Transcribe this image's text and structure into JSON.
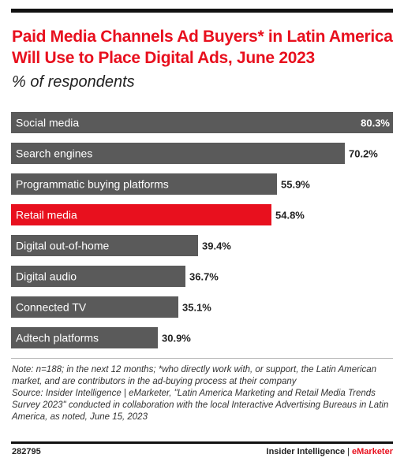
{
  "header": {
    "title": "Paid Media Channels Ad Buyers* in Latin America Will Use to Place Digital Ads, June 2023",
    "subtitle": "% of respondents"
  },
  "colors": {
    "accent": "#e8101e",
    "bar": "#5a5a5a",
    "highlight_bar": "#e8101e"
  },
  "chart_data": {
    "type": "bar",
    "orientation": "horizontal",
    "categories": [
      "Social media",
      "Search engines",
      "Programmatic buying platforms",
      "Retail media",
      "Digital out-of-home",
      "Digital audio",
      "Connected TV",
      "Adtech platforms"
    ],
    "values": [
      80.3,
      70.2,
      55.9,
      54.8,
      39.4,
      36.7,
      35.1,
      30.9
    ],
    "labels": [
      "80.3%",
      "70.2%",
      "55.9%",
      "54.8%",
      "39.4%",
      "36.7%",
      "35.1%",
      "30.9%"
    ],
    "highlight": "Retail media",
    "xlim": [
      0,
      80.3
    ],
    "grid": false,
    "legend": "none"
  },
  "notes": {
    "note": "Note: n=188; in the next 12 months; *who directly work with, or support, the Latin American market, and are contributors in the ad-buying process at their company",
    "source": "Source: Insider Intelligence | eMarketer, \"Latin America Marketing and Retail Media Trends Survey 2023\" conducted in collaboration with the local Interactive Advertising Bureaus in Latin America, as noted, June 15, 2023"
  },
  "footer": {
    "chart_id": "282795",
    "brand_main": "Insider Intelligence",
    "brand_separator": "|",
    "brand_accent": "eMarketer"
  }
}
